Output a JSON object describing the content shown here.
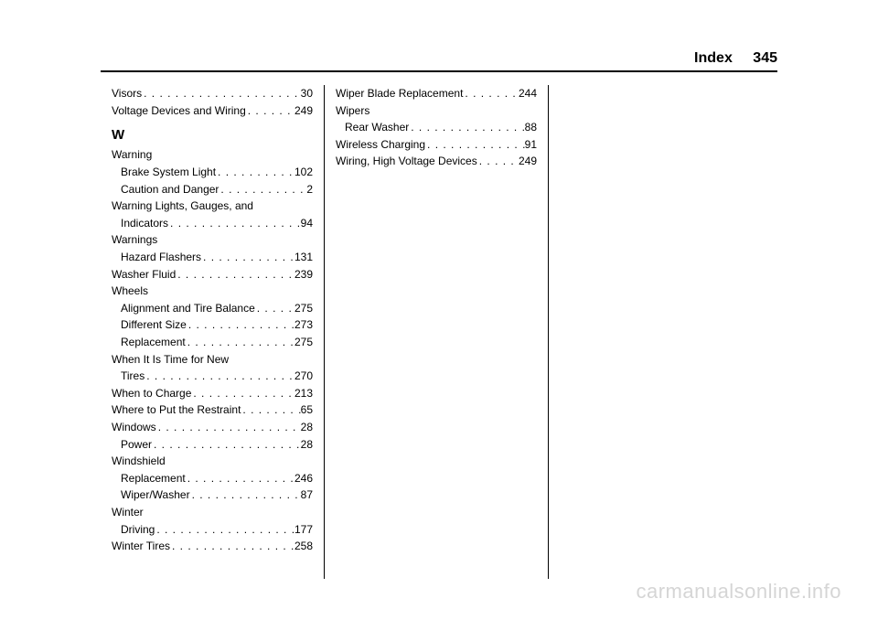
{
  "header": {
    "section": "Index",
    "page": "345"
  },
  "col1": {
    "visors": {
      "label": "Visors",
      "page": "30"
    },
    "voltage": {
      "label": "Voltage Devices and Wiring",
      "page": "249"
    },
    "letter": "W",
    "warning_head": "Warning",
    "warning_brake": {
      "label": "Brake System Light",
      "page": "102"
    },
    "warning_caution": {
      "label": "Caution and Danger",
      "page": "2"
    },
    "warning_lights_head": "Warning Lights, Gauges, and",
    "warning_lights": {
      "label": "Indicators",
      "page": "94"
    },
    "warnings_head": "Warnings",
    "warnings_hazard": {
      "label": "Hazard Flashers",
      "page": "131"
    },
    "washer_fluid": {
      "label": "Washer Fluid",
      "page": "239"
    },
    "wheels_head": "Wheels",
    "wheels_align": {
      "label": "Alignment and Tire Balance",
      "page": "275"
    },
    "wheels_diff": {
      "label": "Different Size",
      "page": "273"
    },
    "wheels_repl": {
      "label": "Replacement",
      "page": "275"
    },
    "newtires_head": "When It Is Time for New",
    "newtires": {
      "label": "Tires",
      "page": "270"
    },
    "when_charge": {
      "label": "When to Charge",
      "page": "213"
    },
    "where_restraint": {
      "label": "Where to Put the Restraint",
      "page": "65"
    },
    "windows": {
      "label": "Windows",
      "page": "28"
    },
    "windows_power": {
      "label": "Power",
      "page": "28"
    },
    "windshield_head": "Windshield",
    "windshield_repl": {
      "label": "Replacement",
      "page": "246"
    },
    "windshield_wiper": {
      "label": "Wiper/Washer",
      "page": "87"
    },
    "winter_head": "Winter",
    "winter_driving": {
      "label": "Driving",
      "page": "177"
    },
    "winter_tires": {
      "label": "Winter Tires",
      "page": "258"
    }
  },
  "col2": {
    "wiper_blade": {
      "label": "Wiper Blade Replacement",
      "page": "244"
    },
    "wipers_head": "Wipers",
    "wipers_rear": {
      "label": "Rear Washer",
      "page": "88"
    },
    "wireless": {
      "label": "Wireless Charging",
      "page": "91"
    },
    "wiring": {
      "label": "Wiring, High Voltage Devices",
      "page": "249"
    }
  },
  "watermark": "carmanualsonline.info"
}
